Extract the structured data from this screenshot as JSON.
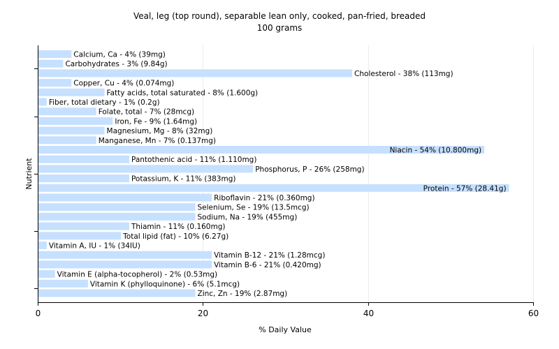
{
  "chart_data": {
    "type": "bar",
    "orientation": "horizontal",
    "title": "Veal, leg (top round), separable lean only, cooked, pan-fried, breaded",
    "subtitle": "100 grams",
    "xlabel": "% Daily Value",
    "ylabel": "Nutrient",
    "xlim": [
      0,
      60
    ],
    "xticks": [
      "0",
      "20",
      "40",
      "60"
    ],
    "grid": "vertical",
    "bar_color": "#c6e0ff",
    "categories": [
      "Calcium, Ca",
      "Carbohydrates",
      "Cholesterol",
      "Copper, Cu",
      "Fatty acids, total saturated",
      "Fiber, total dietary",
      "Folate, total",
      "Iron, Fe",
      "Magnesium, Mg",
      "Manganese, Mn",
      "Niacin",
      "Pantothenic acid",
      "Phosphorus, P",
      "Potassium, K",
      "Protein",
      "Riboflavin",
      "Selenium, Se",
      "Sodium, Na",
      "Thiamin",
      "Total lipid (fat)",
      "Vitamin A, IU",
      "Vitamin B-12",
      "Vitamin B-6",
      "Vitamin E (alpha-tocopherol)",
      "Vitamin K (phylloquinone)",
      "Zinc, Zn"
    ],
    "values": [
      4,
      3,
      38,
      4,
      8,
      1,
      7,
      9,
      8,
      7,
      54,
      11,
      26,
      11,
      57,
      21,
      19,
      19,
      11,
      10,
      1,
      21,
      21,
      2,
      6,
      19
    ],
    "labels": [
      "Calcium, Ca - 4% (39mg)",
      "Carbohydrates - 3% (9.84g)",
      "Cholesterol - 38% (113mg)",
      "Copper, Cu - 4% (0.074mg)",
      "Fatty acids, total saturated - 8% (1.600g)",
      "Fiber, total dietary - 1% (0.2g)",
      "Folate, total - 7% (28mcg)",
      "Iron, Fe - 9% (1.64mg)",
      "Magnesium, Mg - 8% (32mg)",
      "Manganese, Mn - 7% (0.137mg)",
      "Niacin - 54% (10.800mg)",
      "Pantothenic acid - 11% (1.110mg)",
      "Phosphorus, P - 26% (258mg)",
      "Potassium, K - 11% (383mg)",
      "Protein - 57% (28.41g)",
      "Riboflavin - 21% (0.360mg)",
      "Selenium, Se - 19% (13.5mcg)",
      "Sodium, Na - 19% (455mg)",
      "Thiamin - 11% (0.160mg)",
      "Total lipid (fat) - 10% (6.27g)",
      "Vitamin A, IU - 1% (34IU)",
      "Vitamin B-12 - 21% (1.28mcg)",
      "Vitamin B-6 - 21% (0.420mg)",
      "Vitamin E (alpha-tocopherol) - 2% (0.53mg)",
      "Vitamin K (phylloquinone) - 6% (5.1mcg)",
      "Zinc, Zn - 19% (2.87mg)"
    ]
  }
}
